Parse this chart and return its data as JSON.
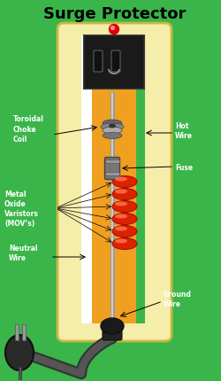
{
  "title": "Surge Protector",
  "bg_color": "#3ab54a",
  "labels": {
    "toroidal": "Toroidal\nChoke\nCoil",
    "mov": "Metal\nOxide\nVaristors\n(MOV’s)",
    "neutral": "Neutral\nWire",
    "hot": "Hot\nWire",
    "fuse": "Fuse",
    "ground": "Ground\nWire"
  },
  "device_color": "#f5edaa",
  "device_border": "#c8b840",
  "inner_orange": "#f0a020",
  "inner_white": "#ffffff",
  "inner_green": "#3ab54a",
  "outlet_color": "#111111",
  "led_color": "#dd0000",
  "wire_color": "#888888",
  "coil_dark": "#555555",
  "mov_red": "#dd2200",
  "mov_highlight": "#ff7755",
  "plug_color": "#2a2a2a",
  "cable_color": "#333333",
  "relief_color": "#1a1a1a",
  "label_color": "#ffffff",
  "arrow_color": "#000000",
  "fuse_color": "#777777",
  "fuse_band": "#999999"
}
